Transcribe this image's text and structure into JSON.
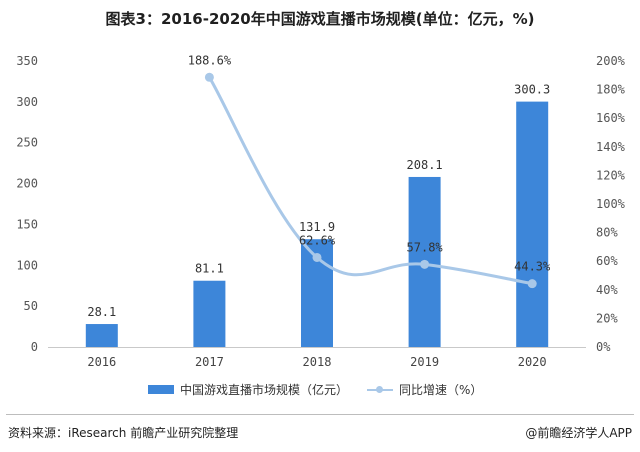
{
  "title": "图表3：2016-2020年中国游戏直播市场规模(单位：亿元，%)",
  "source": "资料来源：iResearch 前瞻产业研究院整理",
  "credit": "@前瞻经济学人APP",
  "colors": {
    "bar": "#3d86d9",
    "line": "#a9c8e8"
  },
  "chart_data": {
    "type": "bar",
    "title": "图表3：2016-2020年中国游戏直播市场规模(单位：亿元，%)",
    "categories": [
      "2016",
      "2017",
      "2018",
      "2019",
      "2020"
    ],
    "series": [
      {
        "name": "中国游戏直播市场规模（亿元）",
        "type": "bar",
        "axis": "left",
        "values": [
          28.1,
          81.1,
          131.9,
          208.1,
          300.3
        ],
        "labels": [
          "28.1",
          "81.1",
          "131.9",
          "208.1",
          "300.3"
        ]
      },
      {
        "name": "同比增速（%）",
        "type": "line",
        "axis": "right",
        "values": [
          null,
          188.6,
          62.6,
          57.8,
          44.3
        ],
        "labels": [
          "",
          "188.6%",
          "62.6%",
          "57.8%",
          "44.3%"
        ]
      }
    ],
    "y_left": {
      "min": 0,
      "max": 350,
      "ticks": [
        "0",
        "50",
        "100",
        "150",
        "200",
        "250",
        "300",
        "350"
      ]
    },
    "y_right": {
      "min": 0,
      "max": 200,
      "ticks": [
        "0%",
        "20%",
        "40%",
        "60%",
        "80%",
        "100%",
        "120%",
        "140%",
        "160%",
        "180%",
        "200%"
      ]
    },
    "grid": false,
    "legend_position": "bottom"
  }
}
